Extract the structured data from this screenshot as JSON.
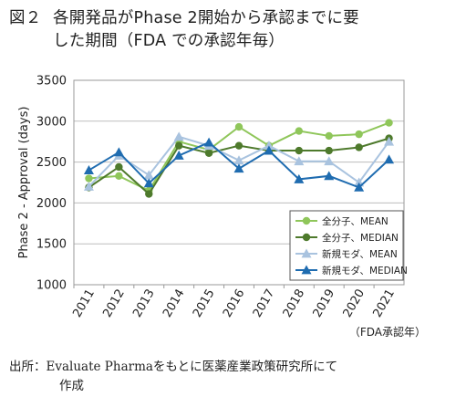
{
  "title": {
    "fig_label": "図２",
    "line1": "各開発品がPhase 2開始から承認までに要",
    "line2": "した期間（FDA での承認年毎）"
  },
  "source": {
    "line1": "出所：Evaluate Pharmaをもとに医薬産業政策研究所にて",
    "line2": "作成"
  },
  "chart_data": {
    "type": "line",
    "categories": [
      "2011",
      "2012",
      "2013",
      "2014",
      "2015",
      "2016",
      "2017",
      "2018",
      "2019",
      "2020",
      "2021"
    ],
    "x_unit_note": "（FDA承認年）",
    "ylabel": "Phase 2 - Approval (days)",
    "ylim": [
      1000,
      3500
    ],
    "yticks": [
      1000,
      1500,
      2000,
      2500,
      3000,
      3500
    ],
    "grid": true,
    "legend_position": "inside lower-right",
    "series": [
      {
        "name": "全分子、MEAN",
        "color": "#8fc65a",
        "marker": "circle",
        "values": [
          2300,
          2330,
          2150,
          2750,
          2650,
          2930,
          2700,
          2880,
          2820,
          2840,
          2980
        ]
      },
      {
        "name": "全分子、MEDIAN",
        "color": "#4e7a2c",
        "marker": "circle",
        "values": [
          2190,
          2440,
          2110,
          2700,
          2610,
          2700,
          2640,
          2640,
          2640,
          2680,
          2790
        ]
      },
      {
        "name": "新規モダ、MEAN",
        "color": "#a9c3df",
        "marker": "triangle",
        "values": [
          2200,
          2580,
          2340,
          2810,
          2700,
          2520,
          2700,
          2510,
          2510,
          2250,
          2750
        ]
      },
      {
        "name": "新規モダ、MEDIAN",
        "color": "#1f6cb0",
        "marker": "triangle",
        "values": [
          2400,
          2620,
          2240,
          2580,
          2740,
          2420,
          2640,
          2290,
          2330,
          2190,
          2530
        ]
      }
    ]
  }
}
